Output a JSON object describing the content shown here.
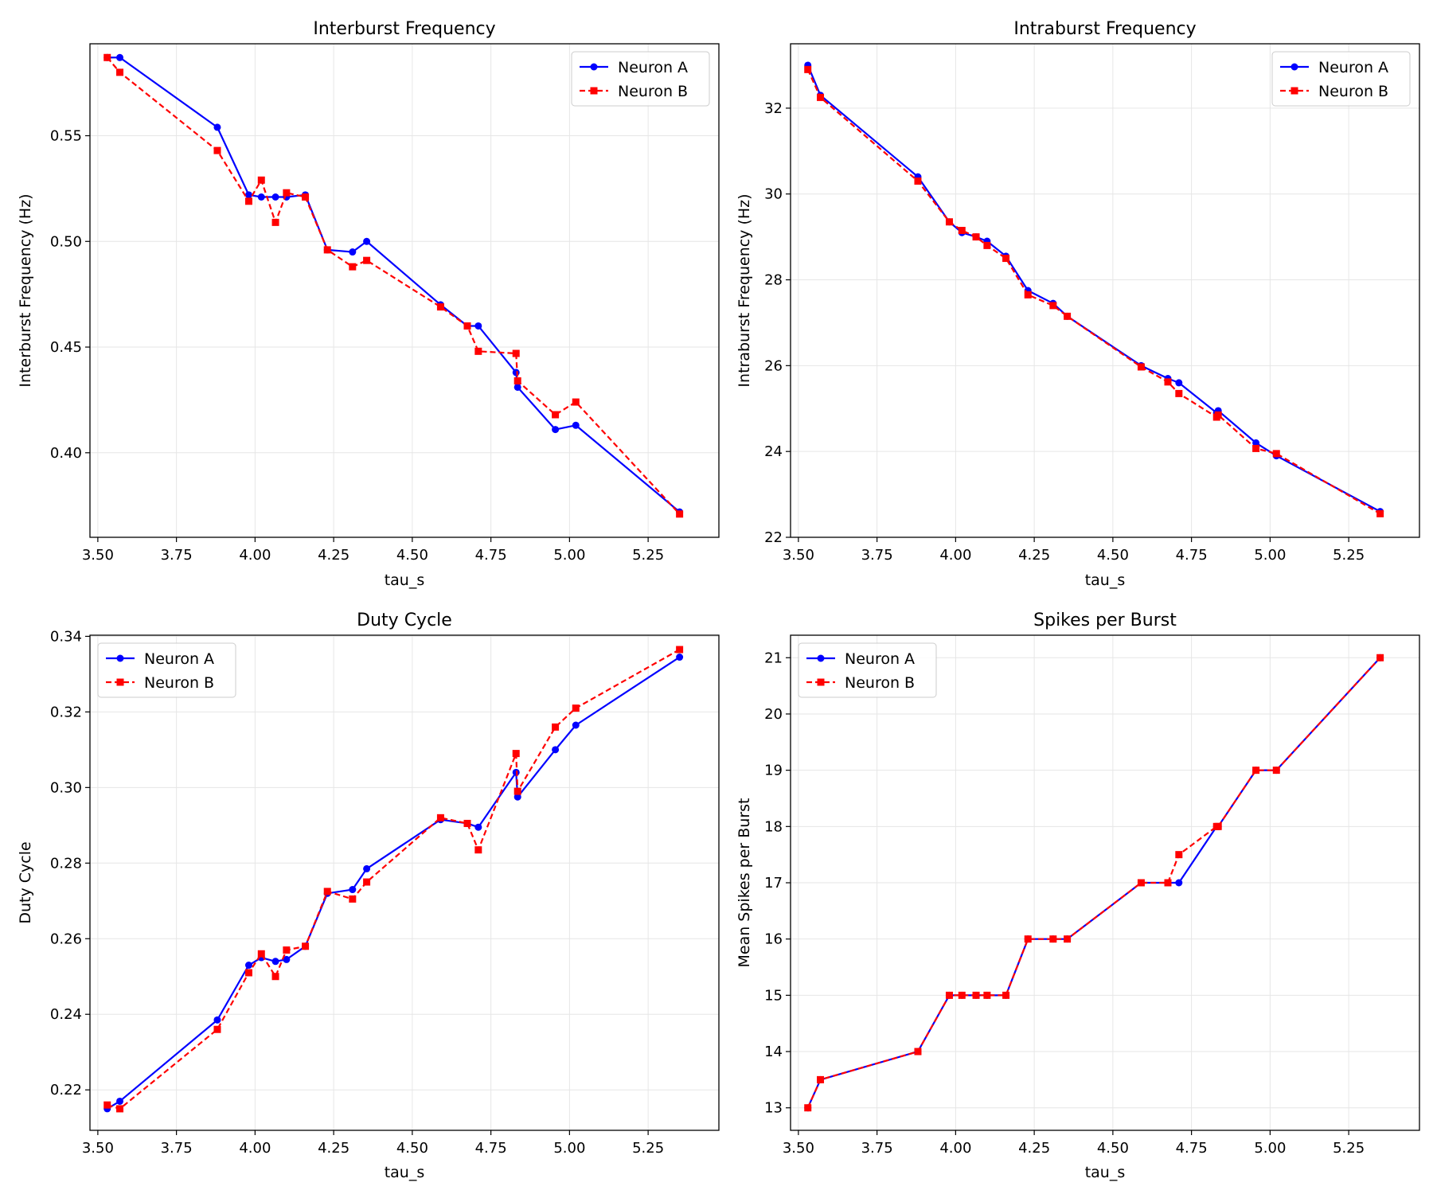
{
  "chart_data": [
    {
      "type": "line",
      "title": "Interburst Frequency",
      "xlabel": "tau_s",
      "ylabel": "Interburst Frequency (Hz)",
      "xlim": [
        3.475,
        5.475
      ],
      "ylim": [
        0.36,
        0.5935
      ],
      "xticks": [
        3.5,
        3.75,
        4.0,
        4.25,
        4.5,
        4.75,
        5.0,
        5.25
      ],
      "yticks": [
        0.4,
        0.45,
        0.5,
        0.55
      ],
      "tick_decimals": {
        "x": 2,
        "y": 2
      },
      "legend_position": "top-right",
      "grid": true,
      "series": [
        {
          "name": "Neuron A",
          "color": "#0000ff",
          "style": "solid",
          "marker": "circle",
          "x": [
            3.53,
            3.57,
            3.88,
            3.98,
            4.02,
            4.065,
            4.1,
            4.16,
            4.23,
            4.31,
            4.355,
            4.59,
            4.675,
            4.71,
            4.83,
            4.835,
            4.955,
            5.02,
            5.35
          ],
          "y": [
            0.587,
            0.587,
            0.554,
            0.522,
            0.521,
            0.521,
            0.521,
            0.522,
            0.496,
            0.495,
            0.5,
            0.47,
            0.46,
            0.46,
            0.438,
            0.431,
            0.411,
            0.413,
            0.372
          ]
        },
        {
          "name": "Neuron B",
          "color": "#ff0000",
          "style": "dashed",
          "marker": "square",
          "x": [
            3.53,
            3.57,
            3.88,
            3.98,
            4.02,
            4.065,
            4.1,
            4.16,
            4.23,
            4.31,
            4.355,
            4.59,
            4.675,
            4.71,
            4.83,
            4.835,
            4.955,
            5.02,
            5.35
          ],
          "y": [
            0.587,
            0.58,
            0.543,
            0.519,
            0.529,
            0.509,
            0.523,
            0.521,
            0.496,
            0.488,
            0.491,
            0.469,
            0.46,
            0.448,
            0.447,
            0.434,
            0.418,
            0.424,
            0.371
          ]
        }
      ]
    },
    {
      "type": "line",
      "title": "Intraburst Frequency",
      "xlabel": "tau_s",
      "ylabel": "Intraburst Frequency (Hz)",
      "xlim": [
        3.475,
        5.475
      ],
      "ylim": [
        22.0,
        33.5
      ],
      "xticks": [
        3.5,
        3.75,
        4.0,
        4.25,
        4.5,
        4.75,
        5.0,
        5.25
      ],
      "yticks": [
        22,
        24,
        26,
        28,
        30,
        32
      ],
      "tick_decimals": {
        "x": 2,
        "y": 0
      },
      "legend_position": "top-right",
      "grid": true,
      "series": [
        {
          "name": "Neuron A",
          "color": "#0000ff",
          "style": "solid",
          "marker": "circle",
          "x": [
            3.53,
            3.57,
            3.88,
            3.98,
            4.02,
            4.065,
            4.1,
            4.16,
            4.23,
            4.31,
            4.355,
            4.59,
            4.675,
            4.71,
            4.83,
            4.835,
            4.955,
            5.02,
            5.35
          ],
          "y": [
            33.0,
            32.3,
            30.4,
            29.35,
            29.1,
            29.0,
            28.9,
            28.55,
            27.75,
            27.45,
            27.15,
            26.0,
            25.7,
            25.6,
            24.9,
            24.95,
            24.2,
            23.9,
            22.6
          ]
        },
        {
          "name": "Neuron B",
          "color": "#ff0000",
          "style": "dashed",
          "marker": "square",
          "x": [
            3.53,
            3.57,
            3.88,
            3.98,
            4.02,
            4.065,
            4.1,
            4.16,
            4.23,
            4.31,
            4.355,
            4.59,
            4.675,
            4.71,
            4.83,
            4.835,
            4.955,
            5.02,
            5.35
          ],
          "y": [
            32.9,
            32.25,
            30.3,
            29.35,
            29.15,
            29.0,
            28.8,
            28.5,
            27.65,
            27.4,
            27.15,
            25.97,
            25.62,
            25.35,
            24.8,
            24.85,
            24.07,
            23.95,
            22.55
          ]
        }
      ]
    },
    {
      "type": "line",
      "title": "Duty Cycle",
      "xlabel": "tau_s",
      "ylabel": "Duty Cycle",
      "xlim": [
        3.475,
        5.475
      ],
      "ylim": [
        0.2093,
        0.3403
      ],
      "xticks": [
        3.5,
        3.75,
        4.0,
        4.25,
        4.5,
        4.75,
        5.0,
        5.25
      ],
      "yticks": [
        0.22,
        0.24,
        0.26,
        0.28,
        0.3,
        0.32,
        0.34
      ],
      "tick_decimals": {
        "x": 2,
        "y": 2
      },
      "legend_position": "top-left",
      "grid": true,
      "series": [
        {
          "name": "Neuron A",
          "color": "#0000ff",
          "style": "solid",
          "marker": "circle",
          "x": [
            3.53,
            3.57,
            3.88,
            3.98,
            4.02,
            4.065,
            4.1,
            4.16,
            4.23,
            4.31,
            4.355,
            4.59,
            4.675,
            4.71,
            4.83,
            4.835,
            4.955,
            5.02,
            5.35
          ],
          "y": [
            0.215,
            0.217,
            0.2385,
            0.253,
            0.255,
            0.254,
            0.2545,
            0.258,
            0.272,
            0.273,
            0.2785,
            0.2915,
            0.2905,
            0.2895,
            0.304,
            0.2975,
            0.31,
            0.3165,
            0.3345
          ]
        },
        {
          "name": "Neuron B",
          "color": "#ff0000",
          "style": "dashed",
          "marker": "square",
          "x": [
            3.53,
            3.57,
            3.88,
            3.98,
            4.02,
            4.065,
            4.1,
            4.16,
            4.23,
            4.31,
            4.355,
            4.59,
            4.675,
            4.71,
            4.83,
            4.835,
            4.955,
            5.02,
            5.35
          ],
          "y": [
            0.216,
            0.215,
            0.236,
            0.251,
            0.256,
            0.25,
            0.257,
            0.258,
            0.2725,
            0.2705,
            0.275,
            0.292,
            0.2905,
            0.2835,
            0.309,
            0.299,
            0.316,
            0.321,
            0.3365
          ]
        }
      ]
    },
    {
      "type": "line",
      "title": "Spikes per Burst",
      "xlabel": "tau_s",
      "ylabel": "Mean Spikes per Burst",
      "xlim": [
        3.475,
        5.475
      ],
      "ylim": [
        12.6,
        21.4
      ],
      "xticks": [
        3.5,
        3.75,
        4.0,
        4.25,
        4.5,
        4.75,
        5.0,
        5.25
      ],
      "yticks": [
        13,
        14,
        15,
        16,
        17,
        18,
        19,
        20,
        21
      ],
      "tick_decimals": {
        "x": 2,
        "y": 0
      },
      "legend_position": "top-left",
      "grid": true,
      "series": [
        {
          "name": "Neuron A",
          "color": "#0000ff",
          "style": "solid",
          "marker": "circle",
          "x": [
            3.53,
            3.57,
            3.88,
            3.98,
            4.02,
            4.065,
            4.1,
            4.16,
            4.23,
            4.31,
            4.355,
            4.59,
            4.675,
            4.71,
            4.83,
            4.835,
            4.955,
            5.02,
            5.35
          ],
          "y": [
            13,
            13.5,
            14,
            15,
            15,
            15,
            15,
            15,
            16,
            16,
            16,
            17,
            17,
            17,
            18,
            18,
            19,
            19,
            21
          ]
        },
        {
          "name": "Neuron B",
          "color": "#ff0000",
          "style": "dashed",
          "marker": "square",
          "x": [
            3.53,
            3.57,
            3.88,
            3.98,
            4.02,
            4.065,
            4.1,
            4.16,
            4.23,
            4.31,
            4.355,
            4.59,
            4.675,
            4.71,
            4.83,
            4.835,
            4.955,
            5.02,
            5.35
          ],
          "y": [
            13,
            13.5,
            14,
            15,
            15,
            15,
            15,
            15,
            16,
            16,
            16,
            17,
            17,
            17.5,
            18,
            18,
            19,
            19,
            21
          ]
        }
      ]
    }
  ]
}
